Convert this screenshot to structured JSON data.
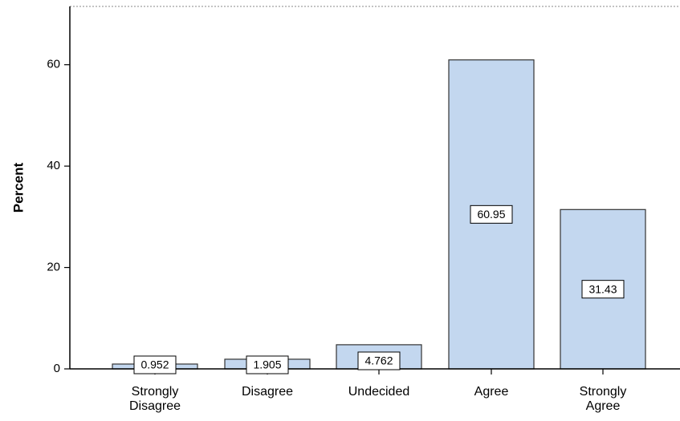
{
  "chart_data": {
    "type": "bar",
    "categories": [
      [
        "Strongly",
        "Disagree"
      ],
      [
        "Disagree"
      ],
      [
        "Undecided"
      ],
      [
        "Agree"
      ],
      [
        "Strongly",
        "Agree"
      ]
    ],
    "values": [
      0.952,
      1.905,
      4.762,
      60.95,
      31.43
    ],
    "data_labels": [
      "0.952",
      "1.905",
      "4.762",
      "60.95",
      "31.43"
    ],
    "ylabel": "Percent",
    "yticks": [
      0,
      20,
      40,
      60
    ],
    "ylim": [
      0,
      71.5
    ],
    "grid": false,
    "bar_color": "#c3d7ef",
    "bar_edge_color": "#333333"
  }
}
